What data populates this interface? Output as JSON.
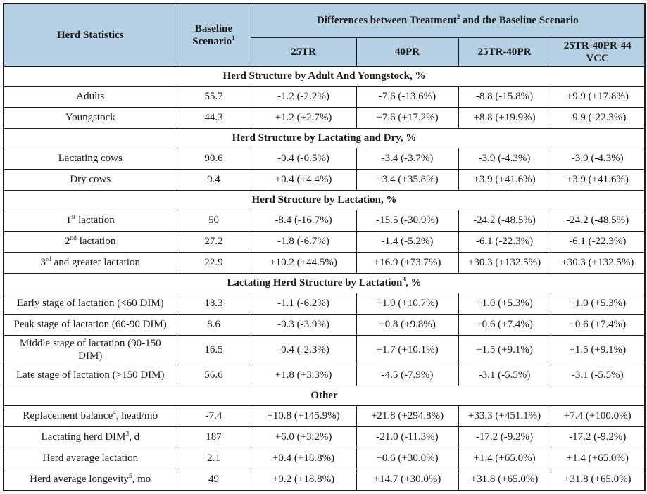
{
  "table": {
    "colors": {
      "header_bg": "#b5cfe3",
      "border": "#1b1b1b",
      "text": "#1a1a1a"
    },
    "header": {
      "herd_statistics": "Herd Statistics",
      "baseline": "Baseline Scenario^{1}",
      "differences": "Differences between Treatment^{2} and the Baseline Scenario",
      "treatments": [
        "25TR",
        "40PR",
        "25TR-40PR",
        "25TR-40PR-44 VCC"
      ]
    },
    "sections": [
      {
        "title": "Herd Structure by Adult And Youngstock, %",
        "rows": [
          {
            "label": "Adults",
            "baseline": "55.7",
            "values": [
              "-1.2 (-2.2%)",
              "-7.6 (-13.6%)",
              "-8.8 (-15.8%)",
              "+9.9 (+17.8%)"
            ]
          },
          {
            "label": "Youngstock",
            "baseline": "44.3",
            "values": [
              "+1.2 (+2.7%)",
              "+7.6 (+17.2%)",
              "+8.8 (+19.9%)",
              "-9.9 (-22.3%)"
            ]
          }
        ]
      },
      {
        "title": "Herd Structure by Lactating and Dry, %",
        "rows": [
          {
            "label": "Lactating cows",
            "baseline": "90.6",
            "values": [
              "-0.4 (-0.5%)",
              "-3.4 (-3.7%)",
              "-3.9 (-4.3%)",
              "-3.9 (-4.3%)"
            ]
          },
          {
            "label": "Dry cows",
            "baseline": "9.4",
            "values": [
              "+0.4 (+4.4%)",
              "+3.4 (+35.8%)",
              "+3.9 (+41.6%)",
              "+3.9 (+41.6%)"
            ]
          }
        ]
      },
      {
        "title": "Herd Structure by Lactation, %",
        "rows": [
          {
            "label": "1^{st} lactation",
            "baseline": "50",
            "values": [
              "-8.4 (-16.7%)",
              "-15.5 (-30.9%)",
              "-24.2 (-48.5%)",
              "-24.2 (-48.5%)"
            ]
          },
          {
            "label": "2^{nd} lactation",
            "baseline": "27.2",
            "values": [
              "-1.8 (-6.7%)",
              "-1.4 (-5.2%)",
              "-6.1 (-22.3%)",
              "-6.1 (-22.3%)"
            ]
          },
          {
            "label": "3^{rd} and greater lactation",
            "baseline": "22.9",
            "values": [
              "+10.2 (+44.5%)",
              "+16.9 (+73.7%)",
              "+30.3 (+132.5%)",
              "+30.3 (+132.5%)"
            ]
          }
        ]
      },
      {
        "title": "Lactating Herd Structure by Lactation^{3}, %",
        "rows": [
          {
            "label": "Early stage of lactation (<60 DIM)",
            "baseline": "18.3",
            "values": [
              "-1.1 (-6.2%)",
              "+1.9 (+10.7%)",
              "+1.0 (+5.3%)",
              "+1.0 (+5.3%)"
            ]
          },
          {
            "label": "Peak stage of lactation (60-90 DIM)",
            "baseline": "8.6",
            "values": [
              "-0.3 (-3.9%)",
              "+0.8 (+9.8%)",
              "+0.6 (+7.4%)",
              "+0.6 (+7.4%)"
            ]
          },
          {
            "label": "Middle stage of lactation (90-150 DIM)",
            "baseline": "16.5",
            "values": [
              "-0.4 (-2.3%)",
              "+1.7 (+10.1%)",
              "+1.5 (+9.1%)",
              "+1.5 (+9.1%)"
            ]
          },
          {
            "label": "Late stage of lactation (>150 DIM)",
            "baseline": "56.6",
            "values": [
              "+1.8 (+3.3%)",
              "-4.5 (-7.9%)",
              "-3.1 (-5.5%)",
              "-3.1 (-5.5%)"
            ]
          }
        ]
      },
      {
        "title": "Other",
        "rows": [
          {
            "label": "Replacement balance^{4}, head/mo",
            "baseline": "-7.4",
            "values": [
              "+10.8 (+145.9%)",
              "+21.8 (+294.8%)",
              "+33.3 (+451.1%)",
              "+7.4 (+100.0%)"
            ]
          },
          {
            "label": "Lactating herd DIM^{3}, d",
            "baseline": "187",
            "values": [
              "+6.0 (+3.2%)",
              "-21.0 (-11.3%)",
              "-17.2 (-9.2%)",
              "-17.2 (-9.2%)"
            ]
          },
          {
            "label": "Herd average lactation",
            "baseline": "2.1",
            "values": [
              "+0.4 (+18.8%)",
              "+0.6 (+30.0%)",
              "+1.4 (+65.0%)",
              "+1.4 (+65.0%)"
            ]
          },
          {
            "label": "Herd average longevity^{5}, mo",
            "baseline": "49",
            "values": [
              "+9.2 (+18.8%)",
              "+14.7 (+30.0%)",
              "+31.8 (+65.0%)",
              "+31.8 (+65.0%)"
            ]
          }
        ]
      }
    ]
  }
}
